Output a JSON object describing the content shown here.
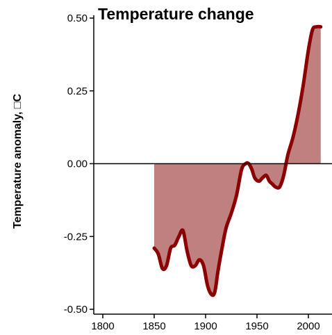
{
  "chart_data": {
    "type": "area",
    "title": "Temperature change",
    "xlabel": "",
    "ylabel": "Temperature anomaly, □C",
    "xlim": [
      1790,
      2025
    ],
    "ylim": [
      -0.5,
      0.5
    ],
    "x_ticks": [
      1800,
      1850,
      1900,
      1950,
      2000
    ],
    "x_tick_labels": [
      "1800",
      "1850",
      "1900",
      "1950",
      "2000"
    ],
    "y_ticks": [
      0.5,
      0.25,
      0.0,
      -0.25,
      -0.5
    ],
    "y_tick_labels": [
      "0.50",
      "0.25",
      "0.00",
      "-0.25",
      "-0.50"
    ],
    "grid": false,
    "legend": "none",
    "baseline": 0.0,
    "line_color": "#8b0000",
    "fill_color": "#c08080",
    "series": [
      {
        "x": [
          1850,
          1854,
          1858,
          1862,
          1866,
          1870,
          1874,
          1878,
          1882,
          1886,
          1890,
          1894,
          1898,
          1902,
          1906,
          1909,
          1912,
          1916,
          1920,
          1925,
          1930,
          1935,
          1939,
          1942,
          1945,
          1948,
          1952,
          1955,
          1959,
          1962,
          1965,
          1968,
          1972,
          1976,
          1980,
          1985,
          1990,
          1995,
          2000,
          2004,
          2008,
          2012
        ],
        "y": [
          -0.29,
          -0.31,
          -0.36,
          -0.35,
          -0.29,
          -0.28,
          -0.25,
          -0.23,
          -0.3,
          -0.35,
          -0.35,
          -0.33,
          -0.35,
          -0.42,
          -0.45,
          -0.44,
          -0.37,
          -0.29,
          -0.22,
          -0.17,
          -0.11,
          -0.02,
          0.0,
          0.0,
          -0.02,
          -0.05,
          -0.06,
          -0.05,
          -0.04,
          -0.06,
          -0.07,
          -0.08,
          -0.08,
          -0.04,
          0.03,
          0.09,
          0.17,
          0.27,
          0.39,
          0.46,
          0.47,
          0.47
        ]
      }
    ]
  }
}
